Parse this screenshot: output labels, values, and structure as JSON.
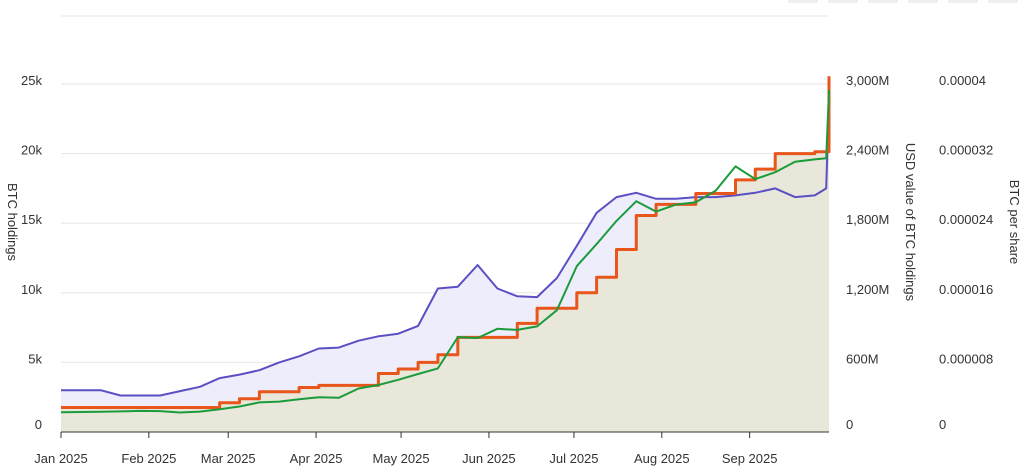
{
  "chart_data": {
    "type": "line",
    "title": "",
    "x": [
      "2025-01-01",
      "2025-01-08",
      "2025-01-15",
      "2025-01-22",
      "2025-01-29",
      "2025-02-05",
      "2025-02-12",
      "2025-02-19",
      "2025-02-26",
      "2025-03-05",
      "2025-03-12",
      "2025-03-19",
      "2025-03-26",
      "2025-04-02",
      "2025-04-09",
      "2025-04-16",
      "2025-04-23",
      "2025-04-30",
      "2025-05-07",
      "2025-05-14",
      "2025-05-21",
      "2025-05-28",
      "2025-06-04",
      "2025-06-11",
      "2025-06-18",
      "2025-06-25",
      "2025-07-02",
      "2025-07-09",
      "2025-07-16",
      "2025-07-23",
      "2025-07-30",
      "2025-08-06",
      "2025-08-13",
      "2025-08-20",
      "2025-08-27",
      "2025-09-03",
      "2025-09-10",
      "2025-09-17",
      "2025-09-24",
      "2025-09-28",
      "2025-09-29"
    ],
    "x_ticks": [
      "Jan 2025",
      "Feb 2025",
      "Mar 2025",
      "Apr 2025",
      "May 2025",
      "Jun 2025",
      "Jul 2025",
      "Aug 2025",
      "Sep 2025"
    ],
    "y_left": {
      "label": "BTC holdings",
      "ticks": [
        "0",
        "5k",
        "10k",
        "15k",
        "20k",
        "25k"
      ],
      "lim": [
        0,
        25000
      ]
    },
    "y_middle": {
      "label": "USD value of BTC holdings",
      "ticks": [
        "0",
        "600M",
        "1,200M",
        "1,800M",
        "2,400M",
        "3,000M"
      ],
      "lim": [
        0,
        3000000000
      ]
    },
    "y_right": {
      "label": "BTC per share",
      "ticks": [
        "0",
        "0.000008",
        "0.000016",
        "0.000024",
        "0.000032",
        "0.00004"
      ],
      "lim": [
        0,
        4e-05
      ]
    },
    "grid": true,
    "series": [
      {
        "axis": "y_left",
        "color": "#e8561c",
        "fill": "#e9e7da",
        "values": [
          1762,
          1762,
          1762,
          1762,
          1762,
          1762,
          1762,
          1762,
          2100,
          2391,
          2888,
          2888,
          3200,
          3350,
          3350,
          3350,
          4206,
          4525,
          5000,
          5555,
          6796,
          6796,
          6796,
          7800,
          8888,
          8888,
          10000,
          11111,
          13113,
          15555,
          16352,
          16352,
          17132,
          17132,
          18113,
          18888,
          20000,
          20000,
          20136,
          20136,
          25555
        ]
      },
      {
        "axis": "y_middle",
        "color": "#1a9c3c",
        "values": [
          170000000,
          172000000,
          175000000,
          178000000,
          182000000,
          180000000,
          168000000,
          176000000,
          196000000,
          220000000,
          255000000,
          262000000,
          282000000,
          300000000,
          295000000,
          375000000,
          405000000,
          450000000,
          500000000,
          548000000,
          818000000,
          810000000,
          890000000,
          880000000,
          910000000,
          1050000000,
          1430000000,
          1620000000,
          1820000000,
          1990000000,
          1900000000,
          1960000000,
          1980000000,
          2080000000,
          2290000000,
          2180000000,
          2240000000,
          2330000000,
          2350000000,
          2360000000,
          2950000000
        ]
      },
      {
        "axis": "y_right",
        "color": "#5a50c4",
        "fill": "#eeedfb",
        "values": [
          4.8e-06,
          4.8e-06,
          4.8e-06,
          4.2e-06,
          4.2e-06,
          4.2e-06,
          4.7e-06,
          5.2e-06,
          6.2e-06,
          6.6e-06,
          7.1e-06,
          8e-06,
          8.7e-06,
          9.6e-06,
          9.7e-06,
          1.05e-05,
          1.1e-05,
          1.13e-05,
          1.22e-05,
          1.65e-05,
          1.67e-05,
          1.92e-05,
          1.65e-05,
          1.56e-05,
          1.55e-05,
          1.77e-05,
          2.14e-05,
          2.52e-05,
          2.7e-05,
          2.75e-05,
          2.68e-05,
          2.68e-05,
          2.7e-05,
          2.7e-05,
          2.72e-05,
          2.75e-05,
          2.8e-05,
          2.7e-05,
          2.72e-05,
          2.8e-05,
          3.85e-05
        ]
      }
    ]
  }
}
